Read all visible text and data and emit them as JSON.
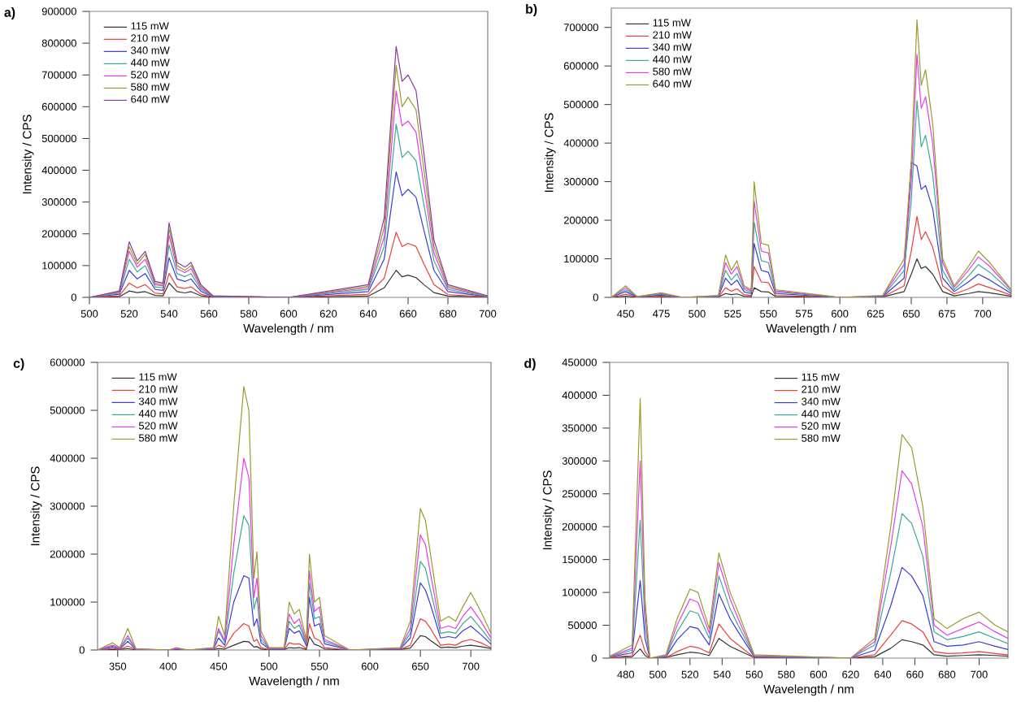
{
  "chart_data": [
    {
      "type": "line",
      "title": "a)",
      "xlabel": "Wavelength / nm",
      "ylabel": "Intensity / CPS",
      "legend": "top left",
      "xlim": [
        500,
        700
      ],
      "xticks": [
        500,
        520,
        540,
        560,
        580,
        600,
        620,
        640,
        660,
        680,
        700
      ],
      "ylim": [
        0,
        900000
      ],
      "yticks": [
        0,
        100000,
        200000,
        300000,
        400000,
        500000,
        600000,
        700000,
        800000,
        900000
      ],
      "x": [
        500,
        515,
        520,
        524,
        528,
        533,
        537,
        540,
        544,
        548,
        551,
        556,
        562,
        600,
        640,
        648,
        654,
        657,
        660,
        664,
        668,
        673,
        680,
        700
      ],
      "series": [
        {
          "name": "115 mW",
          "color": "#333333",
          "values": [
            0,
            2000,
            20000,
            15000,
            18000,
            6000,
            5000,
            45000,
            18000,
            14000,
            18000,
            5000,
            0,
            0,
            4000,
            30000,
            85000,
            65000,
            70000,
            62000,
            40000,
            15000,
            4000,
            1000
          ]
        },
        {
          "name": "210 mW",
          "color": "#e8403a",
          "values": [
            0,
            5000,
            45000,
            30000,
            40000,
            13000,
            11000,
            75000,
            33000,
            28000,
            33000,
            10000,
            1000,
            0,
            10000,
            60000,
            205000,
            160000,
            170000,
            160000,
            105000,
            40000,
            9000,
            1000
          ]
        },
        {
          "name": "340 mW",
          "color": "#3a3ad8",
          "values": [
            0,
            10000,
            85000,
            58000,
            75000,
            25000,
            22000,
            125000,
            58000,
            50000,
            58000,
            19000,
            2000,
            0,
            18000,
            120000,
            395000,
            320000,
            340000,
            315000,
            210000,
            85000,
            18000,
            2000
          ]
        },
        {
          "name": "440 mW",
          "color": "#3aa89a",
          "values": [
            0,
            13000,
            120000,
            80000,
            100000,
            33000,
            30000,
            165000,
            75000,
            65000,
            75000,
            25000,
            3000,
            0,
            25000,
            160000,
            545000,
            440000,
            460000,
            430000,
            290000,
            115000,
            25000,
            3000
          ]
        },
        {
          "name": "520 mW",
          "color": "#e83ae8",
          "values": [
            0,
            16000,
            145000,
            95000,
            120000,
            40000,
            36000,
            195000,
            90000,
            78000,
            90000,
            30000,
            4000,
            0,
            30000,
            190000,
            650000,
            540000,
            555000,
            520000,
            350000,
            140000,
            30000,
            4000
          ]
        },
        {
          "name": "580 mW",
          "color": "#9a9a2a",
          "values": [
            0,
            18000,
            160000,
            105000,
            135000,
            45000,
            40000,
            215000,
            100000,
            85000,
            100000,
            35000,
            4000,
            0,
            35000,
            220000,
            730000,
            600000,
            630000,
            590000,
            400000,
            160000,
            35000,
            4000
          ]
        },
        {
          "name": "640 mW",
          "color": "#8a3a9a",
          "values": [
            0,
            20000,
            175000,
            115000,
            145000,
            50000,
            45000,
            235000,
            110000,
            95000,
            110000,
            40000,
            5000,
            0,
            40000,
            250000,
            790000,
            680000,
            700000,
            650000,
            450000,
            180000,
            40000,
            5000
          ]
        }
      ]
    },
    {
      "type": "line",
      "title": "b)",
      "xlabel": "Wavelength / nm",
      "ylabel": "Intensity / CPS",
      "legend": "top left",
      "xlim": [
        440,
        720
      ],
      "xticks": [
        450,
        475,
        500,
        525,
        550,
        575,
        600,
        625,
        650,
        675,
        700
      ],
      "ylim": [
        0,
        750000
      ],
      "yticks": [
        0,
        100000,
        200000,
        300000,
        400000,
        500000,
        600000,
        700000
      ],
      "x": [
        440,
        450,
        458,
        475,
        490,
        515,
        520,
        524,
        528,
        533,
        538,
        540,
        545,
        550,
        555,
        600,
        630,
        645,
        650,
        654,
        657,
        660,
        665,
        672,
        680,
        690,
        697,
        705,
        720
      ],
      "series": [
        {
          "name": "115 mW",
          "color": "#333333",
          "values": [
            0,
            3000,
            0,
            1000,
            0,
            1000,
            10000,
            7000,
            9000,
            3000,
            2000,
            25000,
            15000,
            14000,
            2000,
            0,
            1000,
            15000,
            60000,
            100000,
            75000,
            80000,
            60000,
            15000,
            4000,
            10000,
            15000,
            12000,
            3000
          ]
        },
        {
          "name": "210 mW",
          "color": "#e8403a",
          "values": [
            0,
            8000,
            1000,
            3000,
            0,
            1000,
            25000,
            16000,
            22000,
            7000,
            5000,
            80000,
            40000,
            38000,
            5000,
            0,
            1000,
            30000,
            120000,
            210000,
            150000,
            170000,
            130000,
            30000,
            9000,
            22000,
            35000,
            25000,
            6000
          ]
        },
        {
          "name": "340 mW",
          "color": "#3a3ad8",
          "values": [
            0,
            15000,
            1000,
            6000,
            0,
            2000,
            50000,
            32000,
            45000,
            14000,
            10000,
            140000,
            70000,
            65000,
            10000,
            0,
            2000,
            50000,
            350000,
            340000,
            280000,
            290000,
            230000,
            50000,
            15000,
            40000,
            60000,
            45000,
            10000
          ]
        },
        {
          "name": "440 mW",
          "color": "#3aa89a",
          "values": [
            0,
            20000,
            2000,
            8000,
            0,
            3000,
            70000,
            45000,
            62000,
            20000,
            14000,
            195000,
            95000,
            90000,
            14000,
            0,
            3000,
            70000,
            250000,
            510000,
            390000,
            420000,
            320000,
            70000,
            20000,
            55000,
            85000,
            65000,
            14000
          ]
        },
        {
          "name": "580 mW",
          "color": "#e83ae8",
          "values": [
            0,
            25000,
            2000,
            10000,
            0,
            4000,
            90000,
            60000,
            80000,
            25000,
            17000,
            250000,
            120000,
            115000,
            17000,
            0,
            4000,
            85000,
            300000,
            630000,
            490000,
            520000,
            400000,
            90000,
            26000,
            70000,
            105000,
            80000,
            18000
          ]
        },
        {
          "name": "640 mW",
          "color": "#9a9a2a",
          "values": [
            0,
            30000,
            2000,
            12000,
            0,
            5000,
            110000,
            70000,
            95000,
            30000,
            20000,
            300000,
            140000,
            135000,
            20000,
            0,
            5000,
            100000,
            350000,
            720000,
            550000,
            590000,
            450000,
            100000,
            30000,
            80000,
            120000,
            90000,
            20000
          ]
        }
      ]
    },
    {
      "type": "line",
      "title": "c)",
      "xlabel": "Wavelength / nm",
      "ylabel": "Intensity / CPS",
      "legend": "top left",
      "xlim": [
        330,
        720
      ],
      "xticks": [
        350,
        400,
        450,
        500,
        550,
        600,
        650,
        700
      ],
      "ylim": [
        0,
        600000
      ],
      "yticks": [
        0,
        100000,
        200000,
        300000,
        400000,
        500000,
        600000
      ],
      "x": [
        330,
        345,
        352,
        360,
        368,
        400,
        408,
        420,
        445,
        450,
        456,
        465,
        475,
        480,
        485,
        488,
        492,
        500,
        515,
        520,
        525,
        530,
        537,
        540,
        545,
        550,
        555,
        580,
        630,
        640,
        650,
        655,
        660,
        670,
        678,
        685,
        692,
        700,
        710,
        720
      ],
      "series": [
        {
          "name": "115 mW",
          "color": "#333333",
          "values": [
            0,
            1000,
            1000,
            3000,
            0,
            0,
            1000,
            0,
            1000,
            3000,
            2000,
            10000,
            18000,
            17000,
            6000,
            7000,
            2000,
            0,
            1000,
            5000,
            4000,
            5000,
            1000,
            28000,
            12000,
            8000,
            2000,
            0,
            1000,
            4000,
            30000,
            28000,
            20000,
            5000,
            6000,
            5000,
            8000,
            10000,
            7000,
            3000
          ]
        },
        {
          "name": "210 mW",
          "color": "#e8403a",
          "values": [
            0,
            3000,
            1000,
            8000,
            1000,
            0,
            1000,
            0,
            1000,
            10000,
            5000,
            35000,
            55000,
            50000,
            18000,
            22000,
            5000,
            1000,
            1000,
            15000,
            12000,
            13000,
            3000,
            55000,
            25000,
            20000,
            5000,
            0,
            1000,
            10000,
            65000,
            60000,
            45000,
            10000,
            12000,
            10000,
            18000,
            22000,
            15000,
            5000
          ]
        },
        {
          "name": "340 mW",
          "color": "#3a3ad8",
          "values": [
            0,
            6000,
            2000,
            18000,
            1000,
            0,
            2000,
            0,
            2000,
            25000,
            10000,
            100000,
            155000,
            150000,
            50000,
            65000,
            15000,
            2000,
            2000,
            45000,
            35000,
            40000,
            9000,
            110000,
            50000,
            55000,
            13000,
            0,
            2000,
            25000,
            140000,
            125000,
            95000,
            25000,
            28000,
            25000,
            40000,
            50000,
            32000,
            12000
          ]
        },
        {
          "name": "440 mW",
          "color": "#3aa89a",
          "values": [
            0,
            8000,
            3000,
            25000,
            2000,
            0,
            3000,
            0,
            3000,
            40000,
            16000,
            160000,
            280000,
            260000,
            85000,
            110000,
            22000,
            3000,
            3000,
            60000,
            45000,
            52000,
            12000,
            140000,
            65000,
            70000,
            18000,
            0,
            3000,
            35000,
            185000,
            170000,
            125000,
            35000,
            38000,
            35000,
            55000,
            70000,
            45000,
            18000
          ]
        },
        {
          "name": "520 mW",
          "color": "#e83ae8",
          "values": [
            0,
            10000,
            4000,
            30000,
            2000,
            0,
            3000,
            0,
            4000,
            45000,
            20000,
            220000,
            400000,
            360000,
            110000,
            150000,
            30000,
            4000,
            4000,
            75000,
            55000,
            65000,
            15000,
            165000,
            80000,
            90000,
            22000,
            0,
            4000,
            45000,
            240000,
            220000,
            160000,
            45000,
            50000,
            45000,
            70000,
            90000,
            60000,
            25000
          ]
        },
        {
          "name": "580 mW",
          "color": "#9a9a2a",
          "values": [
            0,
            15000,
            5000,
            45000,
            3000,
            0,
            5000,
            0,
            5000,
            70000,
            30000,
            300000,
            550000,
            500000,
            150000,
            205000,
            40000,
            5000,
            5000,
            100000,
            75000,
            85000,
            20000,
            200000,
            100000,
            110000,
            30000,
            0,
            5000,
            60000,
            295000,
            270000,
            200000,
            60000,
            70000,
            60000,
            90000,
            120000,
            80000,
            35000
          ]
        }
      ]
    },
    {
      "type": "line",
      "title": "d)",
      "xlabel": "Wavelength / nm",
      "ylabel": "Intensity / CPS",
      "legend": "top",
      "xlim": [
        470,
        718
      ],
      "xticks": [
        480,
        500,
        520,
        540,
        560,
        580,
        600,
        620,
        640,
        660,
        680,
        700
      ],
      "ylim": [
        0,
        450000
      ],
      "yticks": [
        0,
        50000,
        100000,
        150000,
        200000,
        250000,
        300000,
        350000,
        400000,
        450000
      ],
      "x": [
        470,
        484,
        489,
        492,
        495,
        505,
        512,
        520,
        525,
        532,
        538,
        545,
        550,
        560,
        620,
        635,
        645,
        652,
        658,
        665,
        672,
        680,
        690,
        700,
        710,
        718
      ],
      "series": [
        {
          "name": "115 mW",
          "color": "#333333",
          "values": [
            1000,
            2000,
            14000,
            4000,
            0,
            1000,
            5000,
            9000,
            8000,
            4000,
            30000,
            18000,
            12000,
            1000,
            0,
            2000,
            15000,
            28000,
            25000,
            20000,
            5000,
            3000,
            4000,
            5000,
            4000,
            3000
          ]
        },
        {
          "name": "210 mW",
          "color": "#e8403a",
          "values": [
            1000,
            4000,
            35000,
            10000,
            0,
            1000,
            10000,
            18000,
            16000,
            8000,
            52000,
            30000,
            20000,
            1000,
            0,
            5000,
            35000,
            57000,
            52000,
            40000,
            10000,
            7000,
            8000,
            10000,
            7000,
            5000
          ]
        },
        {
          "name": "340 mW",
          "color": "#3a3ad8",
          "values": [
            2000,
            8000,
            118000,
            30000,
            0,
            2000,
            28000,
            48000,
            45000,
            20000,
            98000,
            60000,
            40000,
            2000,
            0,
            12000,
            80000,
            138000,
            125000,
            95000,
            25000,
            18000,
            20000,
            25000,
            18000,
            13000
          ]
        },
        {
          "name": "440 mW",
          "color": "#3aa89a",
          "values": [
            2000,
            12000,
            210000,
            50000,
            0,
            3000,
            40000,
            72000,
            68000,
            30000,
            125000,
            75000,
            50000,
            3000,
            0,
            20000,
            130000,
            220000,
            205000,
            155000,
            40000,
            28000,
            33000,
            40000,
            30000,
            22000
          ]
        },
        {
          "name": "520 mW",
          "color": "#e83ae8",
          "values": [
            3000,
            15000,
            300000,
            70000,
            0,
            4000,
            50000,
            90000,
            85000,
            38000,
            145000,
            90000,
            60000,
            4000,
            0,
            25000,
            170000,
            285000,
            265000,
            200000,
            50000,
            35000,
            45000,
            55000,
            40000,
            30000
          ]
        },
        {
          "name": "580 mW",
          "color": "#9a9a2a",
          "values": [
            3000,
            20000,
            395000,
            90000,
            0,
            5000,
            60000,
            105000,
            100000,
            45000,
            160000,
            100000,
            70000,
            5000,
            0,
            30000,
            200000,
            340000,
            320000,
            230000,
            60000,
            45000,
            60000,
            70000,
            50000,
            40000
          ]
        }
      ]
    }
  ]
}
